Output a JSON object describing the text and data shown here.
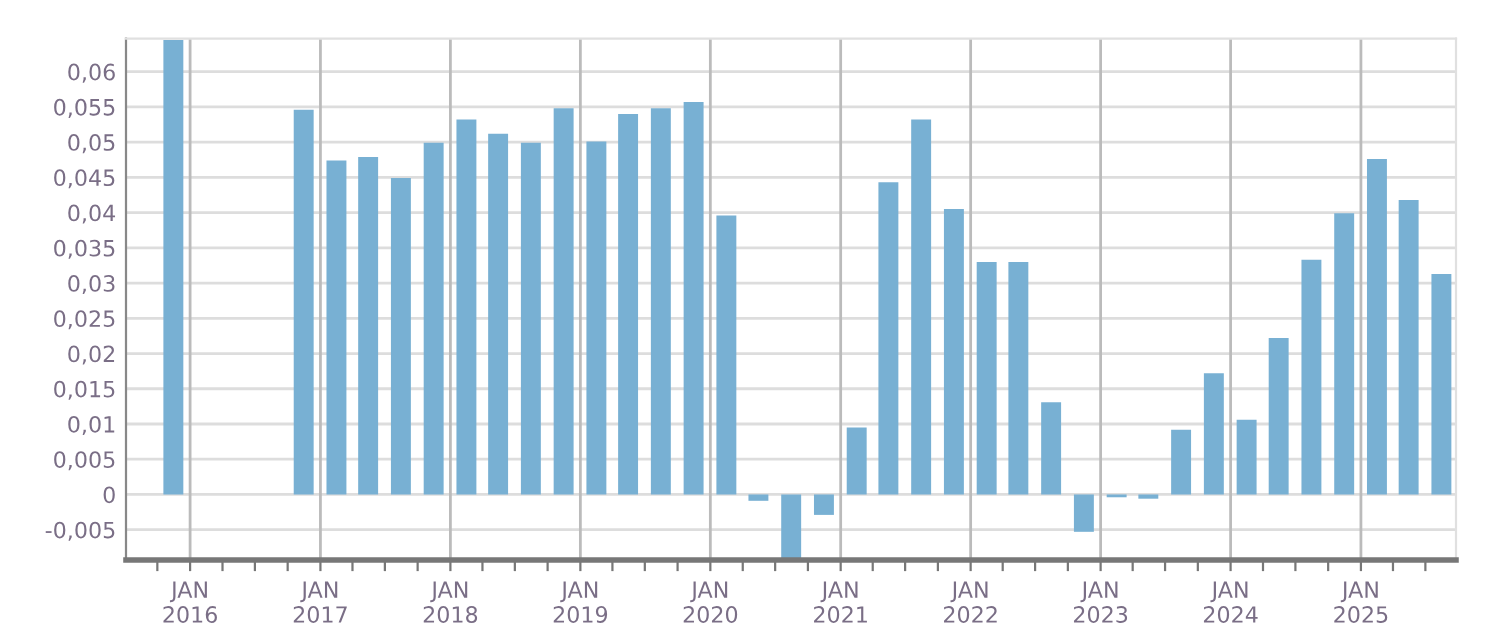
{
  "chart_data": {
    "type": "bar",
    "color": "#78b0d3",
    "x": [
      "2015-11-15",
      "2016-02-15",
      "2016-05-15",
      "2016-08-15",
      "2016-11-15",
      "2017-02-15",
      "2017-05-15",
      "2017-08-15",
      "2017-11-15",
      "2018-02-15",
      "2018-05-15",
      "2018-08-15",
      "2018-11-15",
      "2019-02-15",
      "2019-05-15",
      "2019-08-15",
      "2019-11-15",
      "2020-02-15",
      "2020-05-15",
      "2020-08-15",
      "2020-11-15",
      "2021-02-15",
      "2021-05-15",
      "2021-08-15",
      "2021-11-15",
      "2022-02-15",
      "2022-05-15",
      "2022-08-15",
      "2022-11-15",
      "2023-02-15",
      "2023-05-15",
      "2023-08-15",
      "2023-11-15",
      "2024-02-15",
      "2024-05-15",
      "2024-08-15",
      "2024-11-15",
      "2025-02-15",
      "2025-05-15",
      "2025-08-15"
    ],
    "values": [
      0.0645,
      null,
      null,
      null,
      0.0546,
      0.0474,
      0.0479,
      0.0449,
      0.0499,
      0.0532,
      0.0512,
      0.0499,
      0.0548,
      0.0501,
      0.054,
      0.0548,
      0.0557,
      0.0396,
      -0.0009,
      -0.0092,
      -0.0029,
      0.0095,
      0.0443,
      0.0532,
      0.0405,
      0.033,
      0.033,
      0.0131,
      -0.0053,
      -0.0004,
      -0.0006,
      0.0092,
      0.0172,
      0.0106,
      0.0222,
      0.0333,
      0.0399,
      0.0476,
      0.0418,
      0.0313
    ],
    "xlim": [
      "2015-07-05",
      "2025-09-25"
    ],
    "xticks": [
      {
        "value": "2015-10-01",
        "label": null
      },
      {
        "value": "2016-01-01",
        "label": "JAN\n2016"
      },
      {
        "value": "2016-04-01",
        "label": null
      },
      {
        "value": "2016-07-01",
        "label": null
      },
      {
        "value": "2016-10-01",
        "label": null
      },
      {
        "value": "2017-01-01",
        "label": "JAN\n2017"
      },
      {
        "value": "2017-04-01",
        "label": null
      },
      {
        "value": "2017-07-01",
        "label": null
      },
      {
        "value": "2017-10-01",
        "label": null
      },
      {
        "value": "2018-01-01",
        "label": "JAN\n2018"
      },
      {
        "value": "2018-04-01",
        "label": null
      },
      {
        "value": "2018-07-01",
        "label": null
      },
      {
        "value": "2018-10-01",
        "label": null
      },
      {
        "value": "2019-01-01",
        "label": "JAN\n2019"
      },
      {
        "value": "2019-04-01",
        "label": null
      },
      {
        "value": "2019-07-01",
        "label": null
      },
      {
        "value": "2019-10-01",
        "label": null
      },
      {
        "value": "2020-01-01",
        "label": "JAN\n2020"
      },
      {
        "value": "2020-04-01",
        "label": null
      },
      {
        "value": "2020-07-01",
        "label": null
      },
      {
        "value": "2020-10-01",
        "label": null
      },
      {
        "value": "2021-01-01",
        "label": "JAN\n2021"
      },
      {
        "value": "2021-04-01",
        "label": null
      },
      {
        "value": "2021-07-01",
        "label": null
      },
      {
        "value": "2021-10-01",
        "label": null
      },
      {
        "value": "2022-01-01",
        "label": "JAN\n2022"
      },
      {
        "value": "2022-04-01",
        "label": null
      },
      {
        "value": "2022-07-01",
        "label": null
      },
      {
        "value": "2022-10-01",
        "label": null
      },
      {
        "value": "2023-01-01",
        "label": "JAN\n2023"
      },
      {
        "value": "2023-04-01",
        "label": null
      },
      {
        "value": "2023-07-01",
        "label": null
      },
      {
        "value": "2023-10-01",
        "label": null
      },
      {
        "value": "2024-01-01",
        "label": "JAN\n2024"
      },
      {
        "value": "2024-04-01",
        "label": null
      },
      {
        "value": "2024-07-01",
        "label": null
      },
      {
        "value": "2024-10-01",
        "label": null
      },
      {
        "value": "2025-01-01",
        "label": "JAN\n2025"
      },
      {
        "value": "2025-04-01",
        "label": null
      },
      {
        "value": "2025-07-01",
        "label": null
      }
    ],
    "ylim": [
      -0.0093,
      0.0647
    ],
    "yticks": [
      {
        "value": -0.005,
        "label": "-0,005"
      },
      {
        "value": 0,
        "label": "0"
      },
      {
        "value": 0.005,
        "label": "0,005"
      },
      {
        "value": 0.01,
        "label": "0,01"
      },
      {
        "value": 0.015,
        "label": "0,015"
      },
      {
        "value": 0.02,
        "label": "0,02"
      },
      {
        "value": 0.025,
        "label": "0,025"
      },
      {
        "value": 0.03,
        "label": "0,03"
      },
      {
        "value": 0.035,
        "label": "0,035"
      },
      {
        "value": 0.04,
        "label": "0,04"
      },
      {
        "value": 0.045,
        "label": "0,045"
      },
      {
        "value": 0.05,
        "label": "0,05"
      },
      {
        "value": 0.055,
        "label": "0,055"
      },
      {
        "value": 0.06,
        "label": "0,06"
      }
    ],
    "grid": true,
    "legend": false
  }
}
